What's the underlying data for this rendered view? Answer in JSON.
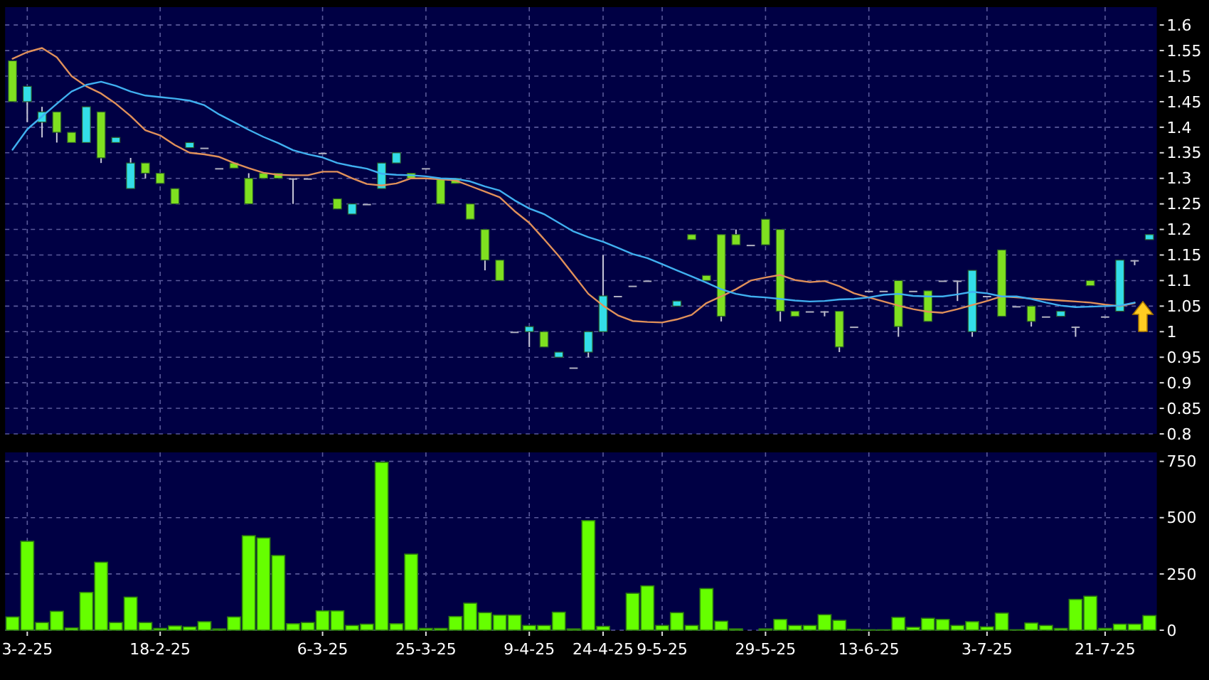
{
  "chart_data": [
    {
      "type": "candlestick",
      "categories": [
        null,
        null,
        null,
        null,
        null,
        null,
        null,
        null,
        null,
        null,
        null,
        null,
        null,
        null,
        null,
        null,
        null,
        null,
        null,
        null,
        null,
        null,
        null,
        null,
        null,
        null,
        null,
        null,
        null,
        null,
        null,
        null,
        null,
        null,
        null,
        null,
        null,
        null,
        null,
        null,
        null,
        null,
        null,
        null,
        null,
        null,
        null,
        null,
        null,
        null,
        null,
        null,
        null,
        null,
        null,
        null,
        null,
        null,
        null,
        null,
        null,
        null,
        null,
        null,
        null,
        null,
        null,
        null,
        null,
        null,
        null,
        null,
        null,
        null,
        null,
        null,
        null,
        null
      ],
      "ohlc": [
        [
          1.45,
          1.53,
          1.45,
          1.53
        ],
        [
          1.48,
          1.48,
          1.41,
          1.45
        ],
        [
          1.43,
          1.44,
          1.38,
          1.41
        ],
        [
          1.39,
          1.43,
          1.37,
          1.43
        ],
        [
          1.37,
          1.39,
          1.37,
          1.39
        ],
        [
          1.44,
          1.44,
          1.37,
          1.37
        ],
        [
          1.34,
          1.43,
          1.33,
          1.43
        ],
        [
          1.38,
          1.38,
          1.37,
          1.37
        ],
        [
          1.33,
          1.34,
          1.28,
          1.28
        ],
        [
          1.31,
          1.33,
          1.3,
          1.33
        ],
        [
          1.29,
          1.31,
          1.29,
          1.31
        ],
        [
          1.25,
          1.28,
          1.25,
          1.28
        ],
        [
          1.37,
          1.37,
          1.36,
          1.36
        ],
        [
          1.36,
          1.36,
          1.36,
          1.36
        ],
        [
          1.32,
          1.32,
          1.32,
          1.32
        ],
        [
          1.32,
          1.33,
          1.32,
          1.33
        ],
        [
          1.25,
          1.31,
          1.25,
          1.3
        ],
        [
          1.3,
          1.31,
          1.3,
          1.31
        ],
        [
          1.3,
          1.31,
          1.3,
          1.31
        ],
        [
          1.3,
          1.3,
          1.25,
          1.3
        ],
        [
          1.3,
          1.3,
          1.3,
          1.3
        ],
        [
          1.35,
          1.35,
          1.35,
          1.35
        ],
        [
          1.24,
          1.26,
          1.24,
          1.26
        ],
        [
          1.25,
          1.25,
          1.23,
          1.23
        ],
        [
          1.25,
          1.25,
          1.25,
          1.25
        ],
        [
          1.33,
          1.33,
          1.28,
          1.28
        ],
        [
          1.35,
          1.35,
          1.33,
          1.33
        ],
        [
          1.3,
          1.31,
          1.3,
          1.31
        ],
        [
          1.32,
          1.32,
          1.32,
          1.32
        ],
        [
          1.25,
          1.3,
          1.25,
          1.3
        ],
        [
          1.29,
          1.3,
          1.29,
          1.3
        ],
        [
          1.22,
          1.25,
          1.22,
          1.25
        ],
        [
          1.14,
          1.2,
          1.12,
          1.2
        ],
        [
          1.1,
          1.14,
          1.1,
          1.14
        ],
        [
          1,
          1,
          1,
          1
        ],
        [
          1.01,
          1.01,
          0.97,
          1
        ],
        [
          0.97,
          1,
          0.97,
          1
        ],
        [
          0.96,
          0.96,
          0.95,
          0.95
        ],
        [
          0.93,
          0.93,
          0.93,
          0.93
        ],
        [
          1,
          1,
          0.95,
          0.96
        ],
        [
          1.07,
          1.15,
          1,
          1
        ],
        [
          1.07,
          1.07,
          1.07,
          1.07
        ],
        [
          1.09,
          1.09,
          1.09,
          1.09
        ],
        [
          1.1,
          1.1,
          1.1,
          1.1
        ],
        null,
        [
          1.06,
          1.06,
          1.05,
          1.05
        ],
        [
          1.18,
          1.19,
          1.18,
          1.19
        ],
        [
          1.1,
          1.11,
          1.1,
          1.11
        ],
        [
          1.03,
          1.19,
          1.02,
          1.19
        ],
        [
          1.17,
          1.2,
          1.17,
          1.19
        ],
        [
          1.17,
          1.17,
          1.17,
          1.17
        ],
        [
          1.17,
          1.22,
          1.17,
          1.22
        ],
        [
          1.04,
          1.2,
          1.02,
          1.2
        ],
        [
          1.03,
          1.04,
          1.03,
          1.04
        ],
        [
          1.04,
          1.04,
          1.04,
          1.04
        ],
        [
          1.04,
          1.04,
          1.03,
          1.04
        ],
        [
          0.97,
          1.04,
          0.96,
          1.04
        ],
        [
          1.01,
          1.01,
          1.01,
          1.01
        ],
        [
          1.08,
          1.08,
          1.08,
          1.08
        ],
        [
          1.08,
          1.08,
          1.08,
          1.08
        ],
        [
          1.01,
          1.1,
          0.99,
          1.1
        ],
        [
          1.08,
          1.08,
          1.08,
          1.08
        ],
        [
          1.02,
          1.08,
          1.02,
          1.08
        ],
        [
          1.1,
          1.1,
          1.1,
          1.1
        ],
        [
          1.1,
          1.1,
          1.06,
          1.1
        ],
        [
          1.12,
          1.12,
          0.99,
          1
        ],
        [
          1.07,
          1.07,
          1.07,
          1.07
        ],
        [
          1.03,
          1.16,
          1.03,
          1.16
        ],
        [
          1.05,
          1.05,
          1.05,
          1.05
        ],
        [
          1.02,
          1.05,
          1.01,
          1.05
        ],
        [
          1.03,
          1.03,
          1.03,
          1.03
        ],
        [
          1.04,
          1.04,
          1.03,
          1.03
        ],
        [
          1.01,
          1.01,
          0.99,
          1.01
        ],
        [
          1.09,
          1.1,
          1.09,
          1.1
        ],
        [
          1.03,
          1.03,
          1.03,
          1.03
        ],
        [
          1.14,
          1.14,
          1.04,
          1.04
        ],
        [
          1.14,
          1.14,
          1.13,
          1.14
        ],
        [
          1.19,
          1.19,
          1.18,
          1.18
        ]
      ],
      "colors": [
        "#7fe020",
        "#33dde8",
        "#33dde8",
        "#7fe020",
        "#7fe020",
        "#33dde8",
        "#7fe020",
        "#33dde8",
        "#33dde8",
        "#7fe020",
        "#7fe020",
        "#7fe020",
        "#33dde8",
        "#b0b0c0",
        "#b0b0c0",
        "#7fe020",
        "#7fe020",
        "#7fe020",
        "#7fe020",
        "#b0b0c0",
        "#b0b0c0",
        "#b0b0c0",
        "#7fe020",
        "#33dde8",
        "#b0b0c0",
        "#33dde8",
        "#33dde8",
        "#7fe020",
        "#b0b0c0",
        "#7fe020",
        "#7fe020",
        "#7fe020",
        "#7fe020",
        "#7fe020",
        "#b0b0c0",
        "#33dde8",
        "#7fe020",
        "#33dde8",
        "#b0b0c0",
        "#33dde8",
        "#33dde8",
        "#b0b0c0",
        "#b0b0c0",
        "#b0b0c0",
        null,
        "#33dde8",
        "#7fe020",
        "#7fe020",
        "#7fe020",
        "#7fe020",
        "#b0b0c0",
        "#7fe020",
        "#7fe020",
        "#7fe020",
        "#b0b0c0",
        "#b0b0c0",
        "#7fe020",
        "#b0b0c0",
        "#b0b0c0",
        "#b0b0c0",
        "#7fe020",
        "#b0b0c0",
        "#7fe020",
        "#b0b0c0",
        "#b0b0c0",
        "#33dde8",
        "#b0b0c0",
        "#7fe020",
        "#b0b0c0",
        "#7fe020",
        "#b0b0c0",
        "#33dde8",
        "#b0b0c0",
        "#7fe020",
        "#b0b0c0",
        "#33dde8",
        "#b0b0c0",
        "#33dde8"
      ],
      "series": [
        {
          "type": "line",
          "color": "#e0905a",
          "values": [
            1.534,
            1.547,
            1.555,
            1.537,
            1.5,
            1.48,
            1.466,
            1.446,
            1.422,
            1.394,
            1.384,
            1.365,
            1.35,
            1.347,
            1.342,
            1.33,
            1.32,
            1.311,
            1.307,
            1.306,
            1.306,
            1.313,
            1.313,
            1.3,
            1.289,
            1.286,
            1.29,
            1.3,
            1.3,
            1.298,
            1.296,
            1.285,
            1.274,
            1.263,
            1.236,
            1.213,
            1.181,
            1.148,
            1.111,
            1.074,
            1.051,
            1.032,
            1.021,
            1.019,
            1.018,
            1.024,
            1.033,
            1.056,
            1.069,
            1.083,
            1.1,
            1.106,
            1.111,
            1.101,
            1.097,
            1.099,
            1.089,
            1.075,
            1.067,
            1.059,
            1.051,
            1.044,
            1.039,
            1.037,
            1.044,
            1.052,
            1.06,
            1.069,
            1.067,
            1.065,
            1.063,
            1.061,
            1.059,
            1.057,
            1.053,
            1.05,
            1.056,
            null
          ]
        },
        {
          "type": "line",
          "color": "#40b0f0",
          "values": [
            1.356,
            1.396,
            1.421,
            1.446,
            1.47,
            1.483,
            1.489,
            1.481,
            1.47,
            1.462,
            1.459,
            1.456,
            1.452,
            1.443,
            1.425,
            1.41,
            1.395,
            1.381,
            1.369,
            1.355,
            1.347,
            1.341,
            1.33,
            1.324,
            1.319,
            1.309,
            1.307,
            1.306,
            1.304,
            1.3,
            1.299,
            1.294,
            1.284,
            1.276,
            1.257,
            1.241,
            1.23,
            1.213,
            1.196,
            1.185,
            1.176,
            1.164,
            1.152,
            1.144,
            1.132,
            1.12,
            1.108,
            1.096,
            1.083,
            1.074,
            1.069,
            1.067,
            1.064,
            1.061,
            1.059,
            1.06,
            1.063,
            1.064,
            1.067,
            1.072,
            1.074,
            1.07,
            1.069,
            1.069,
            1.073,
            1.078,
            1.075,
            1.069,
            1.069,
            1.064,
            1.057,
            1.051,
            1.048,
            1.049,
            1.05,
            1.051,
            1.057,
            null
          ]
        }
      ],
      "ylim": [
        0.8,
        1.635
      ],
      "yticks": [
        0.8,
        0.85,
        0.9,
        0.95,
        1,
        1.05,
        1.1,
        1.15,
        1.2,
        1.25,
        1.3,
        1.35,
        1.4,
        1.45,
        1.5,
        1.55,
        1.6
      ],
      "grid": true,
      "tick_labels": "y"
    },
    {
      "type": "bar",
      "categories": [
        null,
        "3-2-25",
        null,
        null,
        null,
        null,
        null,
        null,
        null,
        null,
        "18-2-25",
        null,
        null,
        null,
        null,
        null,
        null,
        null,
        null,
        null,
        null,
        "6-3-25",
        null,
        null,
        null,
        null,
        null,
        null,
        "25-3-25",
        null,
        null,
        null,
        null,
        null,
        null,
        "9-4-25",
        null,
        null,
        null,
        null,
        "24-4-25",
        null,
        null,
        null,
        "9-5-25",
        null,
        null,
        null,
        null,
        null,
        null,
        "29-5-25",
        null,
        null,
        null,
        null,
        null,
        null,
        "13-6-25",
        null,
        null,
        null,
        null,
        null,
        null,
        null,
        "3-7-25",
        null,
        null,
        null,
        null,
        null,
        null,
        null,
        "21-7-25",
        null,
        null,
        null
      ],
      "values": [
        59,
        395,
        34,
        84,
        10,
        168,
        302,
        34,
        147,
        34,
        8,
        19,
        15,
        38,
        6,
        59,
        420,
        410,
        332,
        29,
        34,
        86,
        86,
        21,
        27,
        746,
        29,
        338,
        8,
        8,
        61,
        120,
        78,
        67,
        67,
        21,
        21,
        80,
        6,
        487,
        17,
        0,
        164,
        197,
        21,
        78,
        21,
        185,
        40,
        6,
        0,
        6,
        48,
        21,
        21,
        69,
        44,
        4,
        2,
        2,
        57,
        13,
        53,
        48,
        21,
        38,
        15,
        76,
        2,
        32,
        21,
        8,
        137,
        151,
        8,
        27,
        27,
        65
      ],
      "color": "#66ff00",
      "ylim": [
        0,
        790
      ],
      "yticks": [
        0,
        250,
        500,
        750
      ],
      "grid": true
    }
  ]
}
